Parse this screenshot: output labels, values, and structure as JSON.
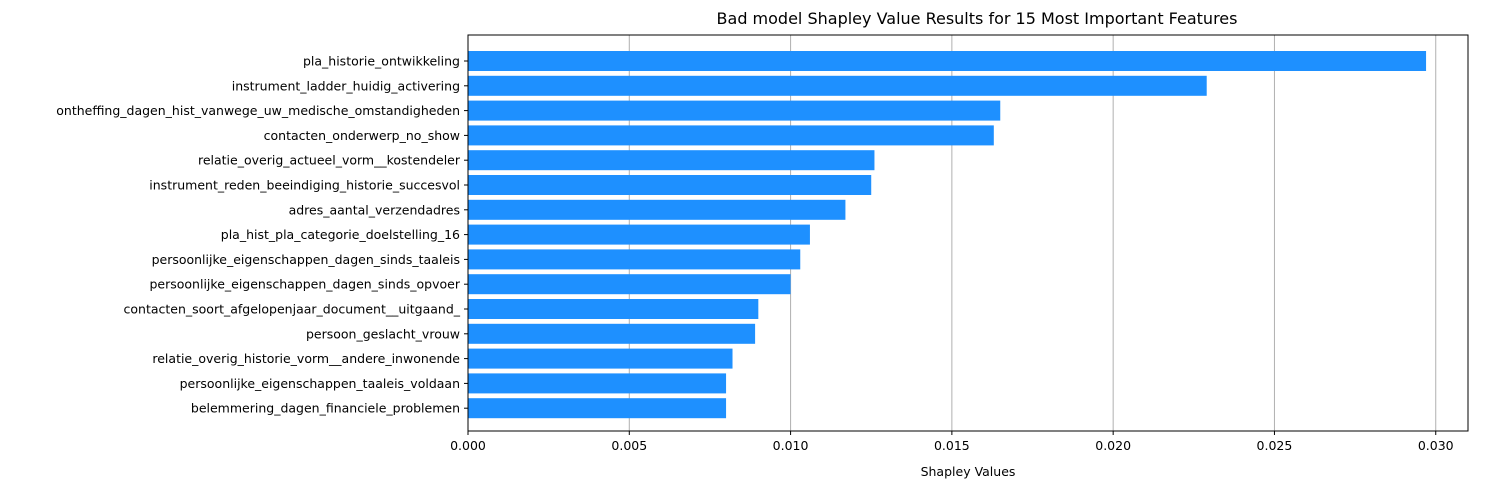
{
  "chart_data": {
    "type": "bar",
    "orientation": "horizontal",
    "title": "Bad model Shapley Value Results for 15 Most Important Features",
    "xlabel": "Shapley Values",
    "ylabel": "",
    "xlim": [
      0,
      0.031
    ],
    "xticks": [
      0.0,
      0.005,
      0.01,
      0.015,
      0.02,
      0.025,
      0.03
    ],
    "xtick_labels": [
      "0.000",
      "0.005",
      "0.010",
      "0.015",
      "0.020",
      "0.025",
      "0.030"
    ],
    "grid": "x-only",
    "bar_color": "#1e90ff",
    "categories": [
      "pla_historie_ontwikkeling",
      "instrument_ladder_huidig_activering",
      "ontheffing_dagen_hist_vanwege_uw_medische_omstandigheden",
      "contacten_onderwerp_no_show",
      "relatie_overig_actueel_vorm__kostendeler",
      "instrument_reden_beeindiging_historie_succesvol",
      "adres_aantal_verzendadres",
      "pla_hist_pla_categorie_doelstelling_16",
      "persoonlijke_eigenschappen_dagen_sinds_taaleis",
      "persoonlijke_eigenschappen_dagen_sinds_opvoer",
      "contacten_soort_afgelopenjaar_document__uitgaand_",
      "persoon_geslacht_vrouw",
      "relatie_overig_historie_vorm__andere_inwonende",
      "persoonlijke_eigenschappen_taaleis_voldaan",
      "belemmering_dagen_financiele_problemen"
    ],
    "values": [
      0.0297,
      0.0229,
      0.0165,
      0.0163,
      0.0126,
      0.0125,
      0.0117,
      0.0106,
      0.0103,
      0.01,
      0.009,
      0.0089,
      0.0082,
      0.008,
      0.008
    ]
  }
}
